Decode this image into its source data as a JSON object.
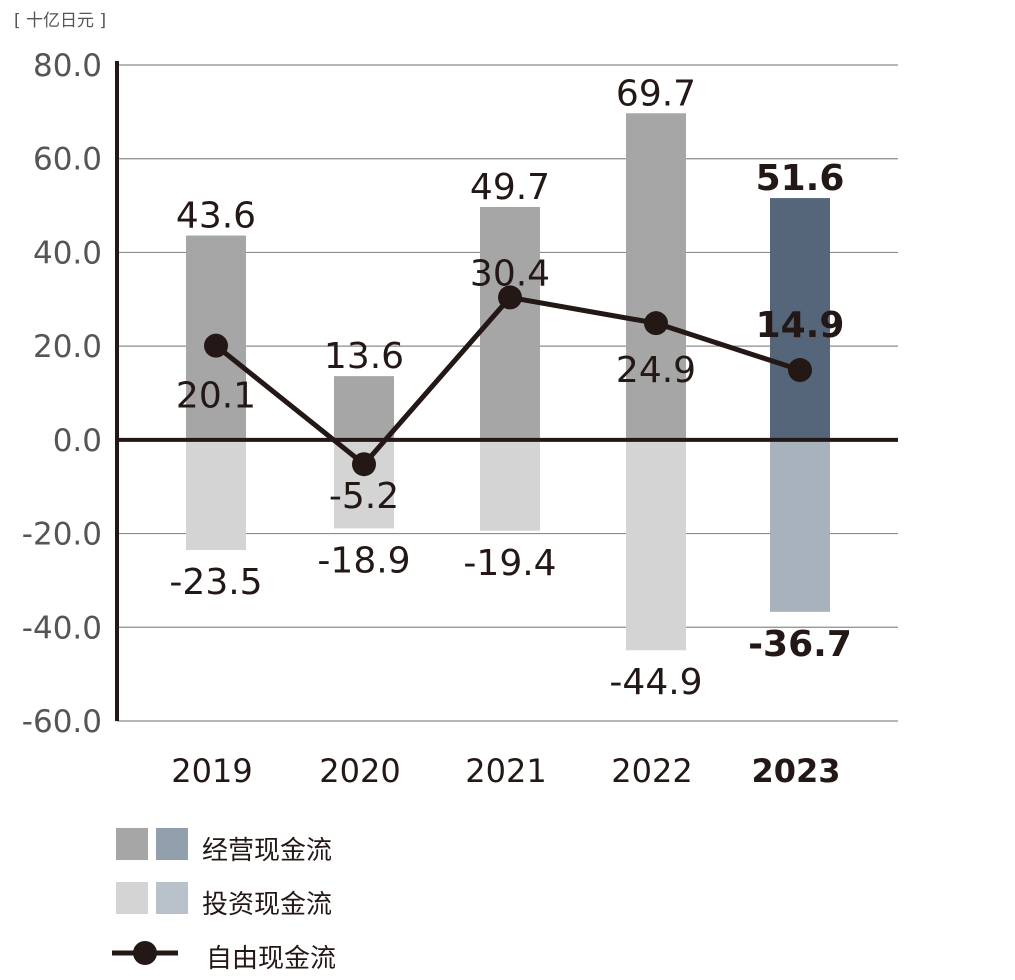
{
  "unit": "[ 十亿日元 ]",
  "colors": {
    "op_past": "#a6a6a6",
    "op_latest": "#55657a",
    "inv_past": "#d4d4d4",
    "inv_latest": "#a8b2bd",
    "line": "#231815",
    "grid": "#8c8c8c"
  },
  "legend": {
    "operating": "经营现金流",
    "investing": "投资现金流",
    "free": "自由现金流"
  },
  "chart_data": {
    "type": "bar",
    "categories": [
      "2019",
      "2020",
      "2021",
      "2022",
      "2023"
    ],
    "highlight_category": "2023",
    "ylim": [
      -60,
      80
    ],
    "yticks": [
      "80.0",
      "60.0",
      "40.0",
      "20.0",
      "0.0",
      "-20.0",
      "-40.0",
      "-60.0"
    ],
    "grid": true,
    "series": [
      {
        "name": "经营现金流",
        "kind": "bar",
        "values": [
          43.6,
          13.6,
          49.7,
          69.7,
          51.6
        ],
        "labels": [
          "43.6",
          "13.6",
          "49.7",
          "69.7",
          "51.6"
        ]
      },
      {
        "name": "投资现金流",
        "kind": "bar",
        "values": [
          -23.5,
          -18.9,
          -19.4,
          -44.9,
          -36.7
        ],
        "labels": [
          "-23.5",
          "-18.9",
          "-19.4",
          "-44.9",
          "-36.7"
        ]
      },
      {
        "name": "自由现金流",
        "kind": "line",
        "values": [
          20.1,
          -5.2,
          30.4,
          24.9,
          14.9
        ],
        "labels": [
          "20.1",
          "-5.2",
          "30.4",
          "24.9",
          "14.9"
        ]
      }
    ]
  }
}
